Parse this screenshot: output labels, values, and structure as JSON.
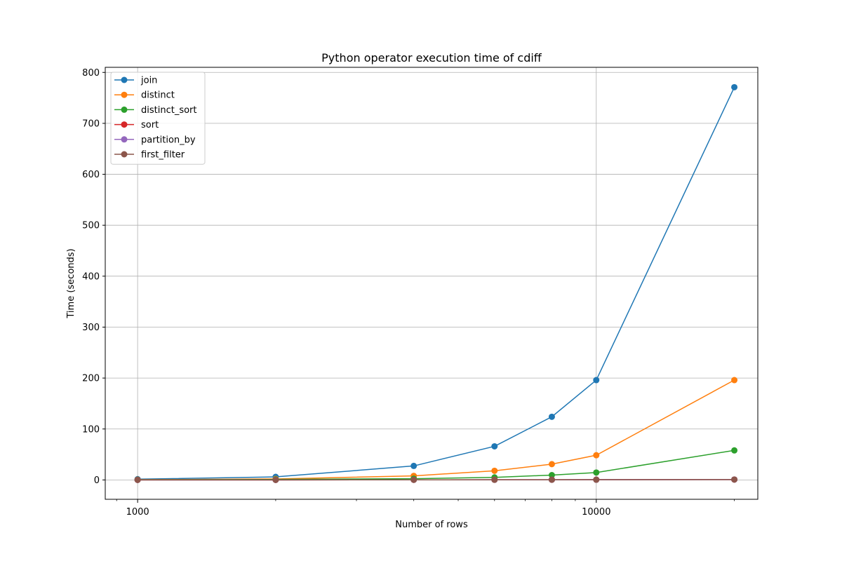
{
  "chart_data": {
    "type": "line",
    "title": "Python operator execution time of cdiff",
    "xlabel": "Number of rows",
    "ylabel": "Time (seconds)",
    "x_scale": "log",
    "xlim": [
      850,
      22500
    ],
    "ylim": [
      -38,
      810
    ],
    "x_ticks": [
      {
        "value": 1000,
        "label": "1000"
      },
      {
        "value": 10000,
        "label": "10000"
      }
    ],
    "y_ticks": [
      {
        "value": 0,
        "label": "0"
      },
      {
        "value": 100,
        "label": "100"
      },
      {
        "value": 200,
        "label": "200"
      },
      {
        "value": 300,
        "label": "300"
      },
      {
        "value": 400,
        "label": "400"
      },
      {
        "value": 500,
        "label": "500"
      },
      {
        "value": 600,
        "label": "600"
      },
      {
        "value": 700,
        "label": "700"
      },
      {
        "value": 800,
        "label": "800"
      }
    ],
    "grid": true,
    "legend_position": "top-left",
    "x": [
      1000,
      2000,
      4000,
      6000,
      8000,
      10000,
      20000
    ],
    "series": [
      {
        "name": "join",
        "color": "#1f77b4",
        "values": [
          1.5,
          6,
          27.5,
          66,
          124,
          196,
          771
        ]
      },
      {
        "name": "distinct",
        "color": "#ff7f0e",
        "values": [
          0.5,
          2,
          8,
          18,
          31,
          48.5,
          196
        ]
      },
      {
        "name": "distinct_sort",
        "color": "#2ca02c",
        "values": [
          0.3,
          1,
          2.5,
          5,
          9.5,
          14.5,
          58
        ]
      },
      {
        "name": "sort",
        "color": "#d62728",
        "values": [
          0.05,
          0.1,
          0.2,
          0.3,
          0.4,
          0.5,
          0.8
        ]
      },
      {
        "name": "partition_by",
        "color": "#9467bd",
        "values": [
          0.05,
          0.1,
          0.2,
          0.3,
          0.4,
          0.5,
          0.8
        ]
      },
      {
        "name": "first_filter",
        "color": "#8c564b",
        "values": [
          0.05,
          0.1,
          0.2,
          0.3,
          0.4,
          0.5,
          0.8
        ]
      }
    ]
  }
}
